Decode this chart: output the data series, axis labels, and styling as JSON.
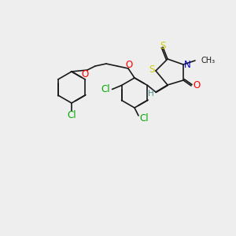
{
  "background_color": "#eeeeee",
  "bond_color": "#1a1a1a",
  "colors": {
    "S": "#cccc00",
    "N": "#0000cc",
    "O": "#ff0000",
    "Cl": "#00aa00",
    "H": "#4a9090",
    "C": "#1a1a1a"
  },
  "font_size": 7.5,
  "lw": 1.2
}
